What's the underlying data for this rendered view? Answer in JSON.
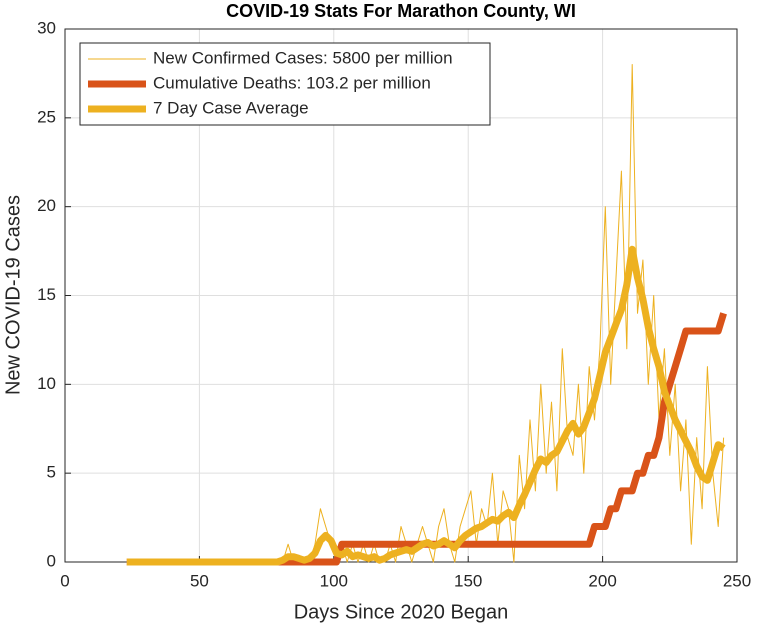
{
  "chart_data": {
    "type": "line",
    "title": "COVID-19 Stats For Marathon County, WI",
    "xlabel": "Days Since 2020 Began",
    "ylabel": "New COVID-19 Cases",
    "x": [
      23,
      25,
      27,
      29,
      31,
      33,
      35,
      37,
      39,
      41,
      43,
      45,
      47,
      49,
      51,
      53,
      55,
      57,
      59,
      61,
      63,
      65,
      67,
      69,
      71,
      73,
      75,
      77,
      79,
      81,
      83,
      85,
      87,
      89,
      91,
      93,
      95,
      97,
      99,
      101,
      103,
      105,
      107,
      109,
      111,
      113,
      115,
      117,
      119,
      121,
      123,
      125,
      127,
      129,
      131,
      133,
      135,
      137,
      139,
      141,
      143,
      145,
      147,
      149,
      151,
      153,
      155,
      157,
      159,
      161,
      163,
      165,
      167,
      169,
      171,
      173,
      175,
      177,
      179,
      181,
      183,
      185,
      187,
      189,
      191,
      193,
      195,
      197,
      199,
      201,
      203,
      205,
      207,
      209,
      211,
      213,
      215,
      217,
      219,
      221,
      223,
      225,
      227,
      229,
      231,
      233,
      235,
      237,
      239,
      241,
      243,
      245
    ],
    "series": [
      {
        "name": "New Confirmed Cases: 5800 per million",
        "color": "#EDB120",
        "values": [
          0,
          0,
          0,
          0,
          0,
          0,
          0,
          0,
          0,
          0,
          0,
          0,
          0,
          0,
          0,
          0,
          0,
          0,
          0,
          0,
          0,
          0,
          0,
          0,
          0,
          0,
          0,
          0,
          0,
          0,
          1,
          0,
          0,
          0,
          0,
          1,
          3,
          2,
          1,
          0,
          1,
          0,
          1,
          0,
          1,
          0,
          1,
          0,
          0,
          1,
          0,
          2,
          1,
          0,
          1,
          2,
          1,
          0,
          2,
          3,
          1,
          0,
          2,
          3,
          4,
          1,
          3,
          2,
          5,
          1,
          4,
          3,
          0,
          6,
          3,
          8,
          4,
          10,
          5,
          9,
          4,
          12,
          7,
          6,
          10,
          5,
          11,
          8,
          12,
          20,
          10,
          16,
          22,
          12,
          28,
          14,
          17,
          10,
          15,
          8,
          12,
          6,
          10,
          4,
          8,
          1,
          7,
          3,
          11,
          5,
          2,
          7
        ]
      },
      {
        "name": "Cumulative Deaths: 103.2 per million",
        "color": "#D95319",
        "values": [
          0,
          0,
          0,
          0,
          0,
          0,
          0,
          0,
          0,
          0,
          0,
          0,
          0,
          0,
          0,
          0,
          0,
          0,
          0,
          0,
          0,
          0,
          0,
          0,
          0,
          0,
          0,
          0,
          0,
          0,
          0,
          0,
          0,
          0,
          0,
          0,
          0,
          0,
          0,
          0,
          1,
          1,
          1,
          1,
          1,
          1,
          1,
          1,
          1,
          1,
          1,
          1,
          1,
          1,
          1,
          1,
          1,
          1,
          1,
          1,
          1,
          1,
          1,
          1,
          1,
          1,
          1,
          1,
          1,
          1,
          1,
          1,
          1,
          1,
          1,
          1,
          1,
          1,
          1,
          1,
          1,
          1,
          1,
          1,
          1,
          1,
          1,
          2,
          2,
          2,
          3,
          3,
          4,
          4,
          4,
          5,
          5,
          6,
          6,
          7,
          9,
          10,
          11,
          12,
          13,
          13,
          13,
          13,
          13,
          13,
          13,
          14
        ]
      },
      {
        "name": "7 Day Case Average",
        "color": "#EDB120",
        "values": [
          0,
          0,
          0,
          0,
          0,
          0,
          0,
          0,
          0,
          0,
          0,
          0,
          0,
          0,
          0,
          0,
          0,
          0,
          0,
          0,
          0,
          0,
          0,
          0,
          0,
          0,
          0,
          0,
          0,
          0.1,
          0.3,
          0.3,
          0.2,
          0.1,
          0.2,
          0.5,
          1.2,
          1.5,
          1.2,
          0.5,
          0.4,
          0.6,
          0.3,
          0.4,
          0.3,
          0.2,
          0.3,
          0.1,
          0.2,
          0.4,
          0.5,
          0.6,
          0.7,
          0.6,
          0.8,
          1.0,
          1.1,
          0.9,
          1.0,
          1.2,
          1.0,
          0.8,
          1.2,
          1.5,
          1.7,
          1.9,
          2.0,
          2.2,
          2.4,
          2.3,
          2.6,
          2.8,
          2.5,
          3.2,
          3.8,
          4.5,
          5.2,
          5.8,
          5.6,
          6.0,
          6.2,
          6.8,
          7.4,
          7.8,
          7.2,
          7.6,
          8.4,
          9.2,
          10.5,
          11.8,
          12.6,
          13.4,
          14.2,
          15.6,
          17.6,
          16.0,
          14.8,
          13.2,
          12.0,
          11.0,
          9.6,
          8.8,
          8.0,
          7.4,
          6.8,
          6.2,
          5.4,
          4.8,
          4.6,
          5.6,
          6.6,
          6.4
        ]
      }
    ],
    "xlim": [
      0,
      250
    ],
    "xticks": [
      0,
      50,
      100,
      150,
      200,
      250
    ],
    "ylim": [
      0,
      30
    ],
    "yticks": [
      0,
      5,
      10,
      15,
      20,
      25,
      30
    ],
    "grid": true,
    "legend": "upper left"
  }
}
